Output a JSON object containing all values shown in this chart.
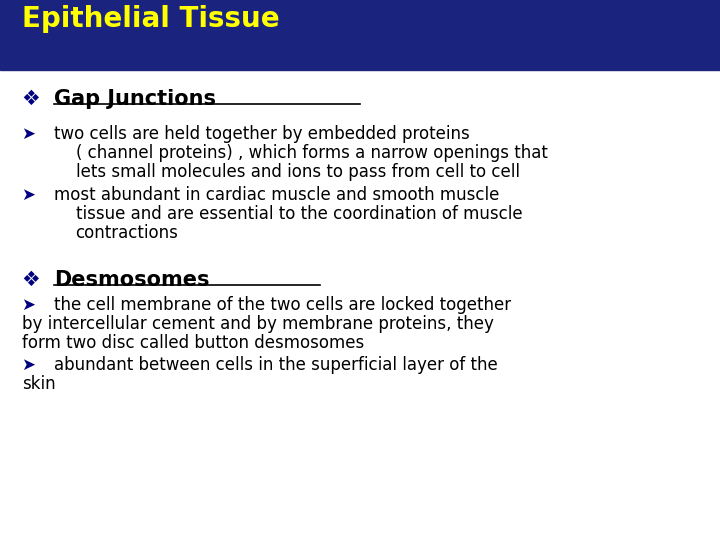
{
  "title": "Epithelial Tissue",
  "title_color": "#FFFF00",
  "header_bg": "#1a237e",
  "body_bg": "#ffffff",
  "figsize": [
    7.2,
    5.4
  ],
  "dpi": 100,
  "section1_heading": "Gap Junctions",
  "section1_bullet1_line1": "two cells are held together by embedded proteins",
  "section1_bullet1_line2": "( channel proteins) , which forms a narrow openings that",
  "section1_bullet1_line3": "lets small molecules and ions to pass from cell to cell",
  "section1_bullet2_line1": "most abundant in cardiac muscle and smooth muscle",
  "section1_bullet2_line2": "tissue and are essential to the coordination of muscle",
  "section1_bullet2_line3": "contractions",
  "section2_heading": "Desmosomes",
  "section2_bullet1_line1": "the cell membrane of the two cells are locked together",
  "section2_bullet1_line2": "by intercellular cement and by membrane proteins, they",
  "section2_bullet1_line3": "form two disc called button desmosomes",
  "section2_bullet2_line1": "abundant between cells in the superficial layer of the",
  "section2_bullet2_line2": "skin",
  "heading_color": "#000000",
  "bullet_color": "#000000",
  "diamond_color": "#000080",
  "arrow_color": "#000080"
}
